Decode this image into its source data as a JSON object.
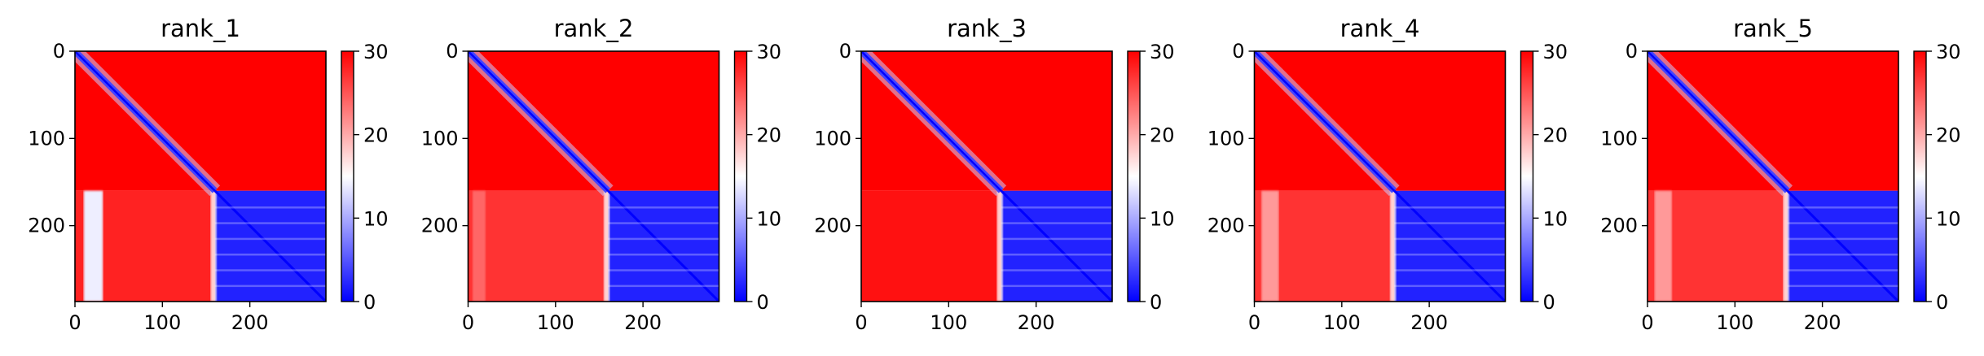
{
  "chart_data": [
    {
      "type": "heatmap",
      "title": "rank_1",
      "matrix_size": 287,
      "split_index": 160,
      "xlim": [
        0,
        287
      ],
      "ylim": [
        287,
        0
      ],
      "xticks": [
        0,
        100,
        200
      ],
      "yticks": [
        0,
        100,
        200
      ],
      "colorbar": {
        "min": 0,
        "max": 30,
        "ticks": [
          0,
          10,
          20,
          30
        ],
        "colormap": "bwr"
      },
      "regions": {
        "diagonal": 0,
        "top_left": 30,
        "top_right": 30,
        "bottom_left": 28,
        "bottom_left_pale_stripe": {
          "from": 10,
          "to": 32,
          "value": 14
        },
        "bottom_right": 2
      }
    },
    {
      "type": "heatmap",
      "title": "rank_2",
      "matrix_size": 287,
      "split_index": 160,
      "xlim": [
        0,
        287
      ],
      "ylim": [
        287,
        0
      ],
      "xticks": [
        0,
        100,
        200
      ],
      "yticks": [
        0,
        100,
        200
      ],
      "colorbar": {
        "min": 0,
        "max": 30,
        "ticks": [
          0,
          10,
          20,
          30
        ],
        "colormap": "bwr"
      },
      "regions": {
        "diagonal": 0,
        "top_left": 30,
        "top_right": 30,
        "bottom_left": 27,
        "bottom_left_pale_stripe": {
          "from": 5,
          "to": 20,
          "value": 24
        },
        "bottom_right": 2
      }
    },
    {
      "type": "heatmap",
      "title": "rank_3",
      "matrix_size": 287,
      "split_index": 160,
      "xlim": [
        0,
        287
      ],
      "ylim": [
        287,
        0
      ],
      "xticks": [
        0,
        100,
        200
      ],
      "yticks": [
        0,
        100,
        200
      ],
      "colorbar": {
        "min": 0,
        "max": 30,
        "ticks": [
          0,
          10,
          20,
          30
        ],
        "colormap": "bwr"
      },
      "regions": {
        "diagonal": 0,
        "top_left": 30,
        "top_right": 30,
        "bottom_left": 29,
        "bottom_left_pale_stripe": {
          "from": 0,
          "to": 0,
          "value": 29
        },
        "bottom_right": 2
      }
    },
    {
      "type": "heatmap",
      "title": "rank_4",
      "matrix_size": 287,
      "split_index": 160,
      "xlim": [
        0,
        287
      ],
      "ylim": [
        287,
        0
      ],
      "xticks": [
        0,
        100,
        200
      ],
      "yticks": [
        0,
        100,
        200
      ],
      "colorbar": {
        "min": 0,
        "max": 30,
        "ticks": [
          0,
          10,
          20,
          30
        ],
        "colormap": "bwr"
      },
      "regions": {
        "diagonal": 0,
        "top_left": 30,
        "top_right": 30,
        "bottom_left": 27,
        "bottom_left_pale_stripe": {
          "from": 8,
          "to": 28,
          "value": 21
        },
        "bottom_right": 2
      }
    },
    {
      "type": "heatmap",
      "title": "rank_5",
      "matrix_size": 287,
      "split_index": 160,
      "xlim": [
        0,
        287
      ],
      "ylim": [
        287,
        0
      ],
      "xticks": [
        0,
        100,
        200
      ],
      "yticks": [
        0,
        100,
        200
      ],
      "colorbar": {
        "min": 0,
        "max": 30,
        "ticks": [
          0,
          10,
          20,
          30
        ],
        "colormap": "bwr"
      },
      "regions": {
        "diagonal": 0,
        "top_left": 30,
        "top_right": 30,
        "bottom_left": 27,
        "bottom_left_pale_stripe": {
          "from": 8,
          "to": 28,
          "value": 21
        },
        "bottom_right": 2
      }
    }
  ]
}
